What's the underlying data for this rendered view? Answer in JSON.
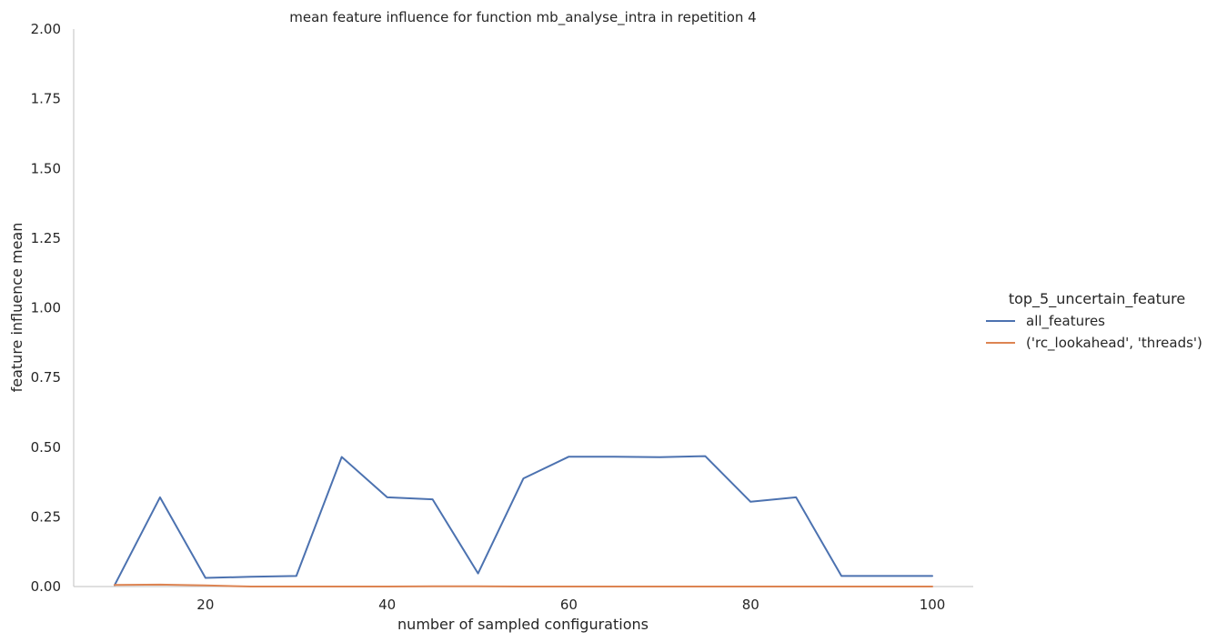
{
  "chart_data": {
    "type": "line",
    "title": "mean feature influence for function mb_analyse_intra in repetition 4",
    "xlabel": "number of sampled configurations",
    "ylabel": "feature influence mean",
    "xlim": [
      5.5,
      104.5
    ],
    "ylim": [
      0,
      2
    ],
    "xticks": [
      20,
      40,
      60,
      80,
      100
    ],
    "yticks": [
      0.0,
      0.25,
      0.5,
      0.75,
      1.0,
      1.25,
      1.5,
      1.75,
      2.0
    ],
    "xtick_labels": [
      "20",
      "40",
      "60",
      "80",
      "100"
    ],
    "ytick_labels": [
      "0.00",
      "0.25",
      "0.50",
      "0.75",
      "1.00",
      "1.25",
      "1.50",
      "1.75",
      "2.00"
    ],
    "grid": false,
    "legend": {
      "title": "top_5_uncertain_feature",
      "placement": "right"
    },
    "series": [
      {
        "name": "all_features",
        "color": "#4c72b0",
        "x": [
          10,
          15,
          20,
          25,
          30,
          35,
          40,
          45,
          50,
          55,
          60,
          65,
          70,
          75,
          80,
          85,
          90,
          95,
          100
        ],
        "y": [
          0.005,
          0.32,
          0.031,
          0.035,
          0.038,
          0.465,
          0.32,
          0.313,
          0.047,
          0.388,
          0.466,
          0.466,
          0.464,
          0.468,
          0.304,
          0.32,
          0.038,
          0.038,
          0.038
        ]
      },
      {
        "name": "('rc_lookahead', 'threads')",
        "color": "#dd8452",
        "x": [
          10,
          15,
          20,
          25,
          30,
          35,
          40,
          45,
          50,
          55,
          60,
          65,
          70,
          75,
          80,
          85,
          90,
          95,
          100
        ],
        "y": [
          0.006,
          0.007,
          0.004,
          0.0,
          0.0,
          0.0,
          0.0,
          0.001,
          0.001,
          0.0,
          0.0,
          0.0,
          0.0,
          0.0,
          0.0,
          0.0,
          0.0,
          0.0,
          0.0
        ]
      }
    ]
  }
}
